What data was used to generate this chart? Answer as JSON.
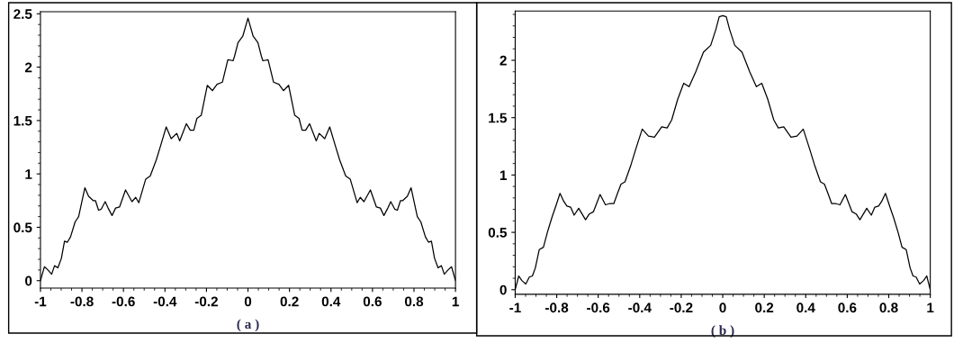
{
  "chart_data": [
    {
      "type": "line",
      "xlabel": "( a )",
      "xlim": [
        -1,
        1
      ],
      "ylim": [
        -0.07,
        2.52
      ],
      "xticks": [
        -1,
        -0.8,
        -0.6,
        -0.4,
        -0.2,
        0,
        0.2,
        0.4,
        0.6,
        0.8,
        1
      ],
      "yticks": [
        0,
        0.5,
        1,
        1.5,
        2,
        2.5
      ],
      "grid": false,
      "series": [
        {
          "color": "#000000",
          "x": [
            -1,
            -0.981,
            -0.964,
            -0.946,
            -0.932,
            -0.916,
            -0.899,
            -0.884,
            -0.87,
            -0.855,
            -0.833,
            -0.816,
            -0.786,
            -0.768,
            -0.746,
            -0.735,
            -0.72,
            -0.707,
            -0.688,
            -0.674,
            -0.655,
            -0.638,
            -0.619,
            -0.59,
            -0.559,
            -0.541,
            -0.526,
            -0.493,
            -0.471,
            -0.442,
            -0.42,
            -0.394,
            -0.37,
            -0.343,
            -0.329,
            -0.297,
            -0.278,
            -0.261,
            -0.246,
            -0.225,
            -0.196,
            -0.171,
            -0.149,
            -0.123,
            -0.097,
            -0.072,
            -0.065,
            -0.048,
            -0.025,
            0,
            0.025,
            0.048,
            0.065,
            0.072,
            0.097,
            0.123,
            0.149,
            0.171,
            0.196,
            0.225,
            0.246,
            0.261,
            0.278,
            0.297,
            0.329,
            0.343,
            0.37,
            0.394,
            0.42,
            0.442,
            0.471,
            0.493,
            0.526,
            0.541,
            0.559,
            0.59,
            0.619,
            0.638,
            0.655,
            0.674,
            0.688,
            0.707,
            0.72,
            0.735,
            0.746,
            0.768,
            0.786,
            0.816,
            0.833,
            0.855,
            0.87,
            0.884,
            0.899,
            0.916,
            0.932,
            0.946,
            0.964,
            0.981,
            1
          ],
          "values": [
            0,
            0.13,
            0.1,
            0.06,
            0.14,
            0.12,
            0.21,
            0.37,
            0.36,
            0.41,
            0.55,
            0.6,
            0.87,
            0.79,
            0.75,
            0.75,
            0.66,
            0.67,
            0.74,
            0.68,
            0.61,
            0.68,
            0.69,
            0.85,
            0.74,
            0.78,
            0.73,
            0.95,
            0.98,
            1.13,
            1.27,
            1.44,
            1.33,
            1.38,
            1.31,
            1.47,
            1.41,
            1.41,
            1.52,
            1.55,
            1.83,
            1.78,
            1.84,
            1.86,
            2.07,
            2.06,
            2.1,
            2.23,
            2.29,
            2.46,
            2.29,
            2.23,
            2.1,
            2.06,
            2.07,
            1.86,
            1.84,
            1.78,
            1.83,
            1.55,
            1.52,
            1.41,
            1.41,
            1.47,
            1.31,
            1.38,
            1.33,
            1.44,
            1.27,
            1.13,
            0.98,
            0.95,
            0.73,
            0.78,
            0.74,
            0.85,
            0.69,
            0.68,
            0.61,
            0.68,
            0.74,
            0.67,
            0.66,
            0.75,
            0.75,
            0.79,
            0.87,
            0.6,
            0.55,
            0.41,
            0.36,
            0.37,
            0.21,
            0.12,
            0.14,
            0.06,
            0.1,
            0.13,
            0
          ]
        }
      ]
    },
    {
      "type": "line",
      "xlabel": "( b )",
      "xlim": [
        -1,
        1
      ],
      "ylim": [
        -0.04,
        2.43
      ],
      "xticks": [
        -1,
        -0.8,
        -0.6,
        -0.4,
        -0.2,
        0,
        0.2,
        0.4,
        0.6,
        0.8,
        1
      ],
      "yticks": [
        0,
        0.5,
        1,
        1.5,
        2
      ],
      "grid": false,
      "series": [
        {
          "color": "#000000",
          "x": [
            -1,
            -0.983,
            -0.968,
            -0.949,
            -0.932,
            -0.917,
            -0.903,
            -0.884,
            -0.864,
            -0.845,
            -0.823,
            -0.804,
            -0.784,
            -0.766,
            -0.751,
            -0.733,
            -0.716,
            -0.694,
            -0.661,
            -0.643,
            -0.623,
            -0.591,
            -0.565,
            -0.546,
            -0.525,
            -0.507,
            -0.49,
            -0.471,
            -0.442,
            -0.42,
            -0.388,
            -0.358,
            -0.329,
            -0.294,
            -0.268,
            -0.246,
            -0.217,
            -0.188,
            -0.162,
            -0.13,
            -0.093,
            -0.058,
            -0.033,
            -0.017,
            0,
            0.017,
            0.033,
            0.058,
            0.093,
            0.13,
            0.162,
            0.188,
            0.217,
            0.246,
            0.268,
            0.294,
            0.329,
            0.358,
            0.388,
            0.42,
            0.442,
            0.471,
            0.49,
            0.507,
            0.525,
            0.546,
            0.565,
            0.591,
            0.623,
            0.643,
            0.661,
            0.694,
            0.716,
            0.733,
            0.751,
            0.766,
            0.784,
            0.804,
            0.823,
            0.845,
            0.864,
            0.884,
            0.903,
            0.917,
            0.932,
            0.949,
            0.968,
            0.983,
            1
          ],
          "values": [
            0,
            0.12,
            0.08,
            0.05,
            0.11,
            0.12,
            0.19,
            0.35,
            0.37,
            0.5,
            0.63,
            0.73,
            0.84,
            0.77,
            0.73,
            0.72,
            0.65,
            0.71,
            0.61,
            0.66,
            0.68,
            0.83,
            0.74,
            0.75,
            0.75,
            0.84,
            0.92,
            0.94,
            1.09,
            1.22,
            1.4,
            1.34,
            1.33,
            1.42,
            1.41,
            1.48,
            1.66,
            1.8,
            1.77,
            1.9,
            2.07,
            2.13,
            2.27,
            2.38,
            2.39,
            2.38,
            2.27,
            2.13,
            2.07,
            1.9,
            1.77,
            1.8,
            1.66,
            1.48,
            1.41,
            1.42,
            1.33,
            1.34,
            1.4,
            1.22,
            1.09,
            0.94,
            0.92,
            0.84,
            0.75,
            0.75,
            0.74,
            0.83,
            0.68,
            0.66,
            0.61,
            0.71,
            0.65,
            0.72,
            0.73,
            0.77,
            0.84,
            0.73,
            0.63,
            0.5,
            0.37,
            0.35,
            0.19,
            0.12,
            0.11,
            0.05,
            0.08,
            0.12,
            0
          ]
        }
      ]
    }
  ]
}
